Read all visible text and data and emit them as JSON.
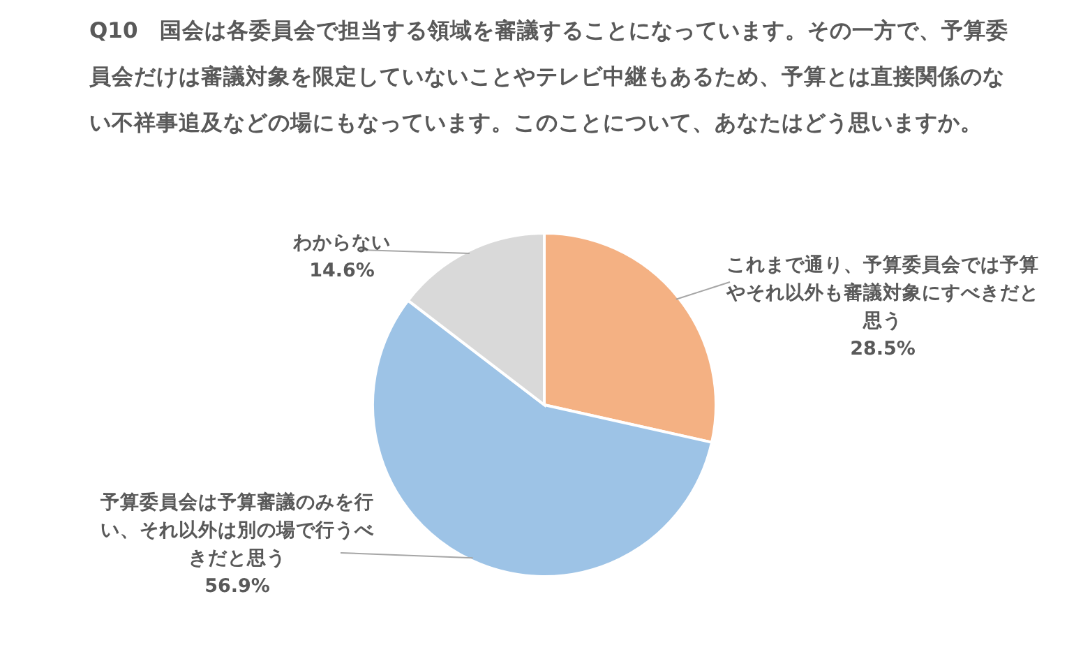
{
  "chart_data": {
    "type": "pie",
    "title": "Q10　国会は各委員会で担当する領域を審議することになっています。その一方で、予算委員会だけは審議対象を限定していないことやテレビ中継もあるため、予算とは直接関係のない不祥事追及などの場にもなっています。このことについて、あなたはどう思いますか。",
    "categories": [
      "これまで通り、予算委員会では予算やそれ以外も審議対象にすべきだと思う",
      "予算委員会は予算審議のみを行い、それ以外は別の場で行うべきだと思う",
      "わからない"
    ],
    "values": [
      28.5,
      56.9,
      14.6
    ],
    "value_labels": [
      "28.5%",
      "56.9%",
      "14.6%"
    ],
    "colors": [
      "#f4b183",
      "#9dc3e6",
      "#d9d9d9"
    ]
  }
}
